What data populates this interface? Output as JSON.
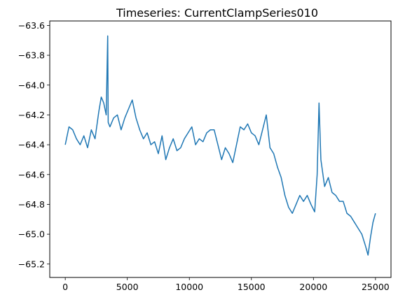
{
  "chart_data": {
    "type": "line",
    "title": "Timeseries: CurrentClampSeries010",
    "xlabel": "",
    "ylabel": "",
    "xlim": [
      -1250,
      26250
    ],
    "ylim": [
      -65.29,
      -63.57
    ],
    "x_ticks": [
      0,
      5000,
      10000,
      15000,
      20000,
      25000
    ],
    "x_tick_labels": [
      "0",
      "5000",
      "10000",
      "15000",
      "20000",
      "25000"
    ],
    "y_ticks": [
      -63.6,
      -63.8,
      -64.0,
      -64.2,
      -64.4,
      -64.6,
      -64.8,
      -65.0,
      -65.2
    ],
    "y_tick_labels": [
      "−63.6",
      "−63.8",
      "−64.0",
      "−64.2",
      "−64.4",
      "−64.6",
      "−64.8",
      "−65.0",
      "−65.2"
    ],
    "grid": false,
    "legend": false,
    "colors": {
      "line": "#1f77b4",
      "axes": "#000000",
      "background": "#ffffff"
    },
    "series": [
      {
        "x": [
          0,
          300,
          600,
          900,
          1200,
          1500,
          1800,
          2100,
          2400,
          2700,
          2900,
          3100,
          3300,
          3420,
          3460,
          3600,
          3900,
          4200,
          4500,
          4800,
          5100,
          5400,
          5700,
          6000,
          6300,
          6600,
          6900,
          7200,
          7500,
          7800,
          8100,
          8400,
          8700,
          9000,
          9300,
          9600,
          9900,
          10200,
          10500,
          10800,
          11100,
          11400,
          11700,
          12000,
          12300,
          12600,
          12900,
          13200,
          13500,
          13800,
          14100,
          14400,
          14700,
          15000,
          15300,
          15600,
          15900,
          16200,
          16500,
          16800,
          17100,
          17400,
          17700,
          18000,
          18300,
          18600,
          18900,
          19200,
          19500,
          19800,
          20100,
          20300,
          20450,
          20600,
          20900,
          21200,
          21500,
          21800,
          22100,
          22400,
          22700,
          23000,
          23300,
          23600,
          23900,
          24200,
          24400,
          24600,
          24800,
          25000
        ],
        "values": [
          -64.4,
          -64.28,
          -64.3,
          -64.36,
          -64.4,
          -64.34,
          -64.42,
          -64.3,
          -64.36,
          -64.18,
          -64.08,
          -64.12,
          -64.2,
          -63.67,
          -64.25,
          -64.28,
          -64.22,
          -64.2,
          -64.3,
          -64.22,
          -64.16,
          -64.1,
          -64.22,
          -64.3,
          -64.36,
          -64.32,
          -64.4,
          -64.38,
          -64.46,
          -64.34,
          -64.5,
          -64.42,
          -64.36,
          -64.44,
          -64.42,
          -64.36,
          -64.32,
          -64.28,
          -64.4,
          -64.36,
          -64.38,
          -64.32,
          -64.3,
          -64.3,
          -64.4,
          -64.5,
          -64.42,
          -64.46,
          -64.52,
          -64.4,
          -64.28,
          -64.3,
          -64.26,
          -64.32,
          -64.34,
          -64.4,
          -64.3,
          -64.2,
          -64.42,
          -64.46,
          -64.55,
          -64.62,
          -64.74,
          -64.82,
          -64.86,
          -64.8,
          -64.74,
          -64.78,
          -64.74,
          -64.8,
          -64.85,
          -64.6,
          -64.12,
          -64.5,
          -64.68,
          -64.62,
          -64.72,
          -64.74,
          -64.78,
          -64.78,
          -64.86,
          -64.88,
          -64.92,
          -64.96,
          -65.0,
          -65.08,
          -65.14,
          -65.02,
          -64.92,
          -64.86
        ]
      }
    ]
  }
}
